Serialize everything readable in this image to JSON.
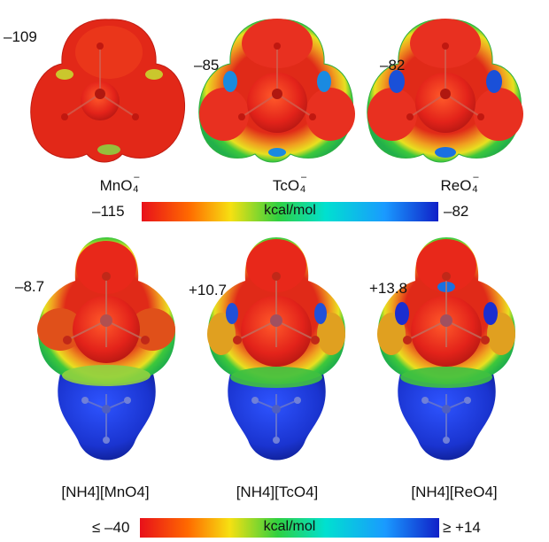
{
  "top_row": {
    "molecules": [
      {
        "value": "–109",
        "label_main": "MnO",
        "label_sub": "4",
        "label_sup": "–"
      },
      {
        "value": "–85",
        "label_main": "TcO",
        "label_sub": "4",
        "label_sup": "–"
      },
      {
        "value": "–82",
        "label_main": "ReO",
        "label_sub": "4",
        "label_sup": "–"
      }
    ],
    "scale": {
      "min": "–115",
      "max": "–82",
      "unit": "kcal/mol"
    }
  },
  "bottom_row": {
    "molecules": [
      {
        "value": "–8.7",
        "label": "[NH4][MnO4]"
      },
      {
        "value": "+10.7",
        "label": "[NH4][TcO4]"
      },
      {
        "value": "+13.8",
        "label": "[NH4][ReO4]"
      }
    ],
    "scale": {
      "min": "≤ –40",
      "max": "≥ +14",
      "unit": "kcal/mol"
    }
  },
  "colors": {
    "surface_red": "#e8231a",
    "surface_blue": "#1c3fd6",
    "green": "#30c43a",
    "yellow": "#f0e020"
  }
}
